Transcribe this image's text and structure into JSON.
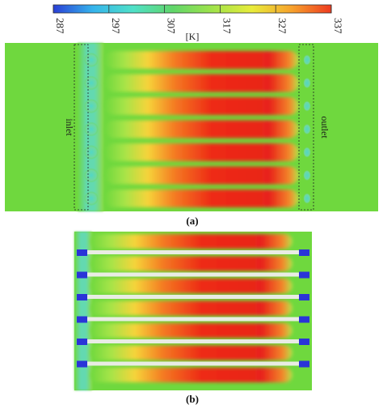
{
  "colorbar": {
    "ticks": [
      "287",
      "297",
      "307",
      "317",
      "327",
      "337"
    ],
    "unit": "[K]",
    "stops": [
      "#2a3fd6",
      "#35b4ec",
      "#4fe0c8",
      "#60d66a",
      "#9fe34a",
      "#e8ec3a",
      "#f7a22c",
      "#ee3a1f"
    ]
  },
  "panel_a": {
    "label": "(a)",
    "inlet_label": "inlet",
    "outlet_label": "outlet",
    "channel_count": 7
  },
  "panel_b": {
    "label": "(b)",
    "channel_count": 7
  },
  "colors": {
    "background_field": "#6fd83e",
    "hot": "#ee2a16",
    "warm": "#f7c02a",
    "cool": "#52d7c6",
    "wall": "#e9ece4",
    "port": "#2a34d8"
  }
}
